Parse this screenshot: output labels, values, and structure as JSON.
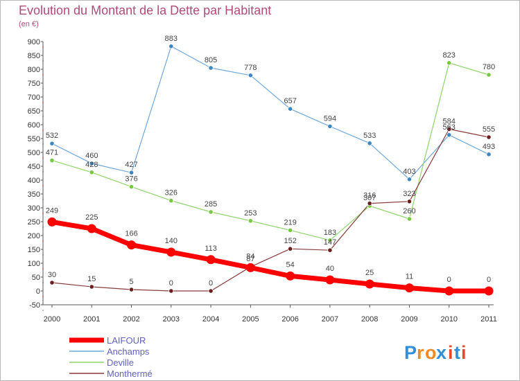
{
  "title": "Evolution du Montant de la Dette par Habitant",
  "subtitle": "(en €)",
  "logo": {
    "text": "Proxiti",
    "letters": [
      "P",
      "r",
      "o",
      "x",
      "i",
      "t",
      "i"
    ],
    "letter_colors": [
      "#2f8fd8",
      "#f08a24",
      "#f08a24",
      "#2f8fd8",
      "#e24a2a",
      "#2f8fd8",
      "#e24a2a"
    ]
  },
  "chart_data": {
    "type": "line",
    "x": [
      "2000",
      "2001",
      "2002",
      "2003",
      "2004",
      "2005",
      "2006",
      "2007",
      "2008",
      "2009",
      "2010",
      "2011"
    ],
    "ylim": [
      -50,
      900
    ],
    "yticks": [
      -50,
      0,
      50,
      100,
      150,
      200,
      250,
      300,
      350,
      400,
      450,
      500,
      550,
      600,
      650,
      700,
      750,
      800,
      850,
      900
    ],
    "grid": false,
    "legend_position": "bottom-left",
    "series": [
      {
        "name": "Anchamps",
        "color": "#6fa8dc",
        "marker_color": "#3c86c2",
        "emphasis": false,
        "values": [
          532,
          460,
          427,
          883,
          805,
          778,
          657,
          594,
          533,
          403,
          563,
          493
        ],
        "labels": [
          "532",
          "460",
          "427",
          "883",
          "805",
          "778",
          "657",
          "594",
          "533",
          "403",
          "563",
          "493"
        ]
      },
      {
        "name": "Deville",
        "color": "#8ed46a",
        "marker_color": "#76c843",
        "emphasis": false,
        "values": [
          471,
          428,
          376,
          326,
          285,
          253,
          219,
          183,
          307,
          260,
          823,
          780
        ],
        "labels": [
          "471",
          "428",
          "376",
          "326",
          "285",
          "253",
          "219",
          "183",
          "307",
          "260",
          "823",
          "780"
        ]
      },
      {
        "name": "Monthermé",
        "color": "#8a3a3a",
        "marker_color": "#6b1e1e",
        "emphasis": false,
        "values": [
          30,
          15,
          5,
          0,
          0,
          87,
          152,
          147,
          316,
          323,
          584,
          555
        ],
        "labels": [
          "30",
          "15",
          "5",
          "0",
          "0",
          "87",
          "152",
          "147",
          "316",
          "323",
          "584",
          "555"
        ]
      },
      {
        "name": "LAIFOUR",
        "color": "#ff0000",
        "marker_color": "#ff0000",
        "emphasis": true,
        "values": [
          249,
          225,
          166,
          140,
          113,
          84,
          54,
          40,
          25,
          11,
          0,
          0
        ],
        "labels": [
          "249",
          "225",
          "166",
          "140",
          "113",
          "84",
          "54",
          "40",
          "25",
          "11",
          "0",
          "0"
        ]
      }
    ],
    "legend_order": [
      "LAIFOUR",
      "Anchamps",
      "Deville",
      "Monthermé"
    ]
  }
}
